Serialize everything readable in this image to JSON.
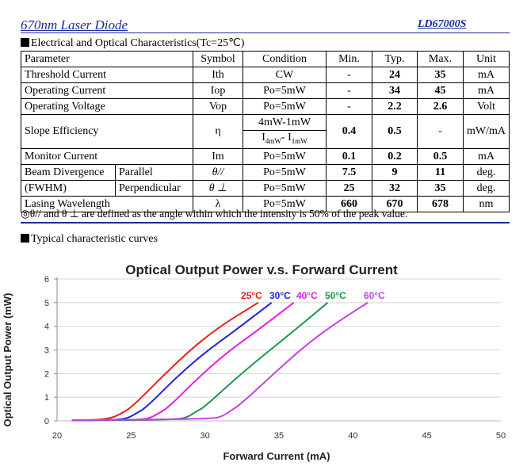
{
  "header": {
    "model_left": "670nm Laser Diode",
    "model_right": "LD67000S"
  },
  "section1_title": "Electrical and Optical Characteristics(Tc=25℃)",
  "table": {
    "headers": [
      "Parameter",
      "Symbol",
      "Condition",
      "Min.",
      "Typ.",
      "Max.",
      "Unit"
    ],
    "rows": {
      "threshold": {
        "param": "Threshold Current",
        "symbol": "Ith",
        "cond": "CW",
        "min": "-",
        "typ": "24",
        "max": "35",
        "unit": "mA"
      },
      "operating_current": {
        "param": "Operating Current",
        "symbol": "Iop",
        "cond": "Po=5mW",
        "min": "-",
        "typ": "34",
        "max": "45",
        "unit": "mA"
      },
      "operating_voltage": {
        "param": "Operating Voltage",
        "symbol": "Vop",
        "cond": "Po=5mW",
        "min": "-",
        "typ": "2.2",
        "max": "2.6",
        "unit": "Volt"
      },
      "slope": {
        "param": "Slope Efficiency",
        "symbol": "η",
        "cond1": "4mW-1mW",
        "cond2_a": "I",
        "cond2_sub_a": "4mW",
        "cond2_b": "- I",
        "cond2_sub_b": "1mW",
        "min": "0.4",
        "typ": "0.5",
        "max": "-",
        "unit": "mW/mA"
      },
      "monitor": {
        "param": "Monitor Current",
        "symbol": "Im",
        "cond": "Po=5mW",
        "min": "0.1",
        "typ": "0.2",
        "max": "0.5",
        "unit": "mA"
      },
      "beam_parallel": {
        "param": "Beam Divergence",
        "sub": "Parallel",
        "symbol": "θ//",
        "cond": "Po=5mW",
        "min": "7.5",
        "typ": "9",
        "max": "11",
        "unit": "deg."
      },
      "beam_perp": {
        "param": "(FWHM)",
        "sub": "Perpendicular",
        "symbol": "θ ⊥",
        "cond": "Po=5mW",
        "min": "25",
        "typ": "32",
        "max": "35",
        "unit": "deg."
      },
      "wavelength": {
        "param": "Lasing Wavelength",
        "symbol": "λ",
        "cond": "Po=5mW",
        "min": "660",
        "typ": "670",
        "max": "678",
        "unit": "nm"
      }
    }
  },
  "note": "◎θ// and θ ⊥ are defined as the angle within which the intensity is 50% of the peak value.",
  "section2_title": "Typical characteristic curves",
  "chart_data": {
    "type": "line",
    "title": "Optical Output Power v.s. Forward Current",
    "xlabel": "Forward Current (mA)",
    "ylabel": "Optical Output Power (mW)",
    "xlim": [
      20,
      50
    ],
    "ylim": [
      0,
      6
    ],
    "xticks": [
      20,
      25,
      30,
      35,
      40,
      45,
      50
    ],
    "yticks": [
      0,
      1,
      2,
      3,
      4,
      5,
      6
    ],
    "grid": true,
    "series": [
      {
        "name": "25°C",
        "color": "#e8201c",
        "x": [
          21,
          23,
          23.8,
          24.3,
          25,
          27,
          29,
          31,
          33.6
        ],
        "y": [
          0.02,
          0.05,
          0.15,
          0.3,
          0.55,
          1.8,
          3.0,
          4.0,
          5.0
        ]
      },
      {
        "name": "30°C",
        "color": "#2323d8",
        "x": [
          21,
          24,
          24.8,
          25.3,
          26,
          28,
          30,
          32,
          34.5
        ],
        "y": [
          0.02,
          0.04,
          0.12,
          0.3,
          0.55,
          1.8,
          2.9,
          3.8,
          5.0
        ]
      },
      {
        "name": "40°C",
        "color": "#e020e0",
        "x": [
          21,
          25.5,
          26.3,
          26.8,
          27.5,
          29.5,
          31.5,
          33.5,
          36
        ],
        "y": [
          0.02,
          0.04,
          0.12,
          0.3,
          0.55,
          1.8,
          2.9,
          3.8,
          5.0
        ]
      },
      {
        "name": "50°C",
        "color": "#1a9a4a",
        "x": [
          21,
          28,
          28.8,
          29.3,
          30,
          32,
          34,
          36,
          38.3
        ],
        "y": [
          0.02,
          0.05,
          0.15,
          0.35,
          0.6,
          1.75,
          2.8,
          3.8,
          5.0
        ]
      },
      {
        "name": "60°C",
        "color": "#c840e8",
        "x": [
          21,
          30.5,
          31.2,
          31.8,
          32.5,
          35,
          37,
          39,
          41
        ],
        "y": [
          0.03,
          0.08,
          0.2,
          0.45,
          0.75,
          2.2,
          3.3,
          4.2,
          5.0
        ]
      }
    ]
  }
}
